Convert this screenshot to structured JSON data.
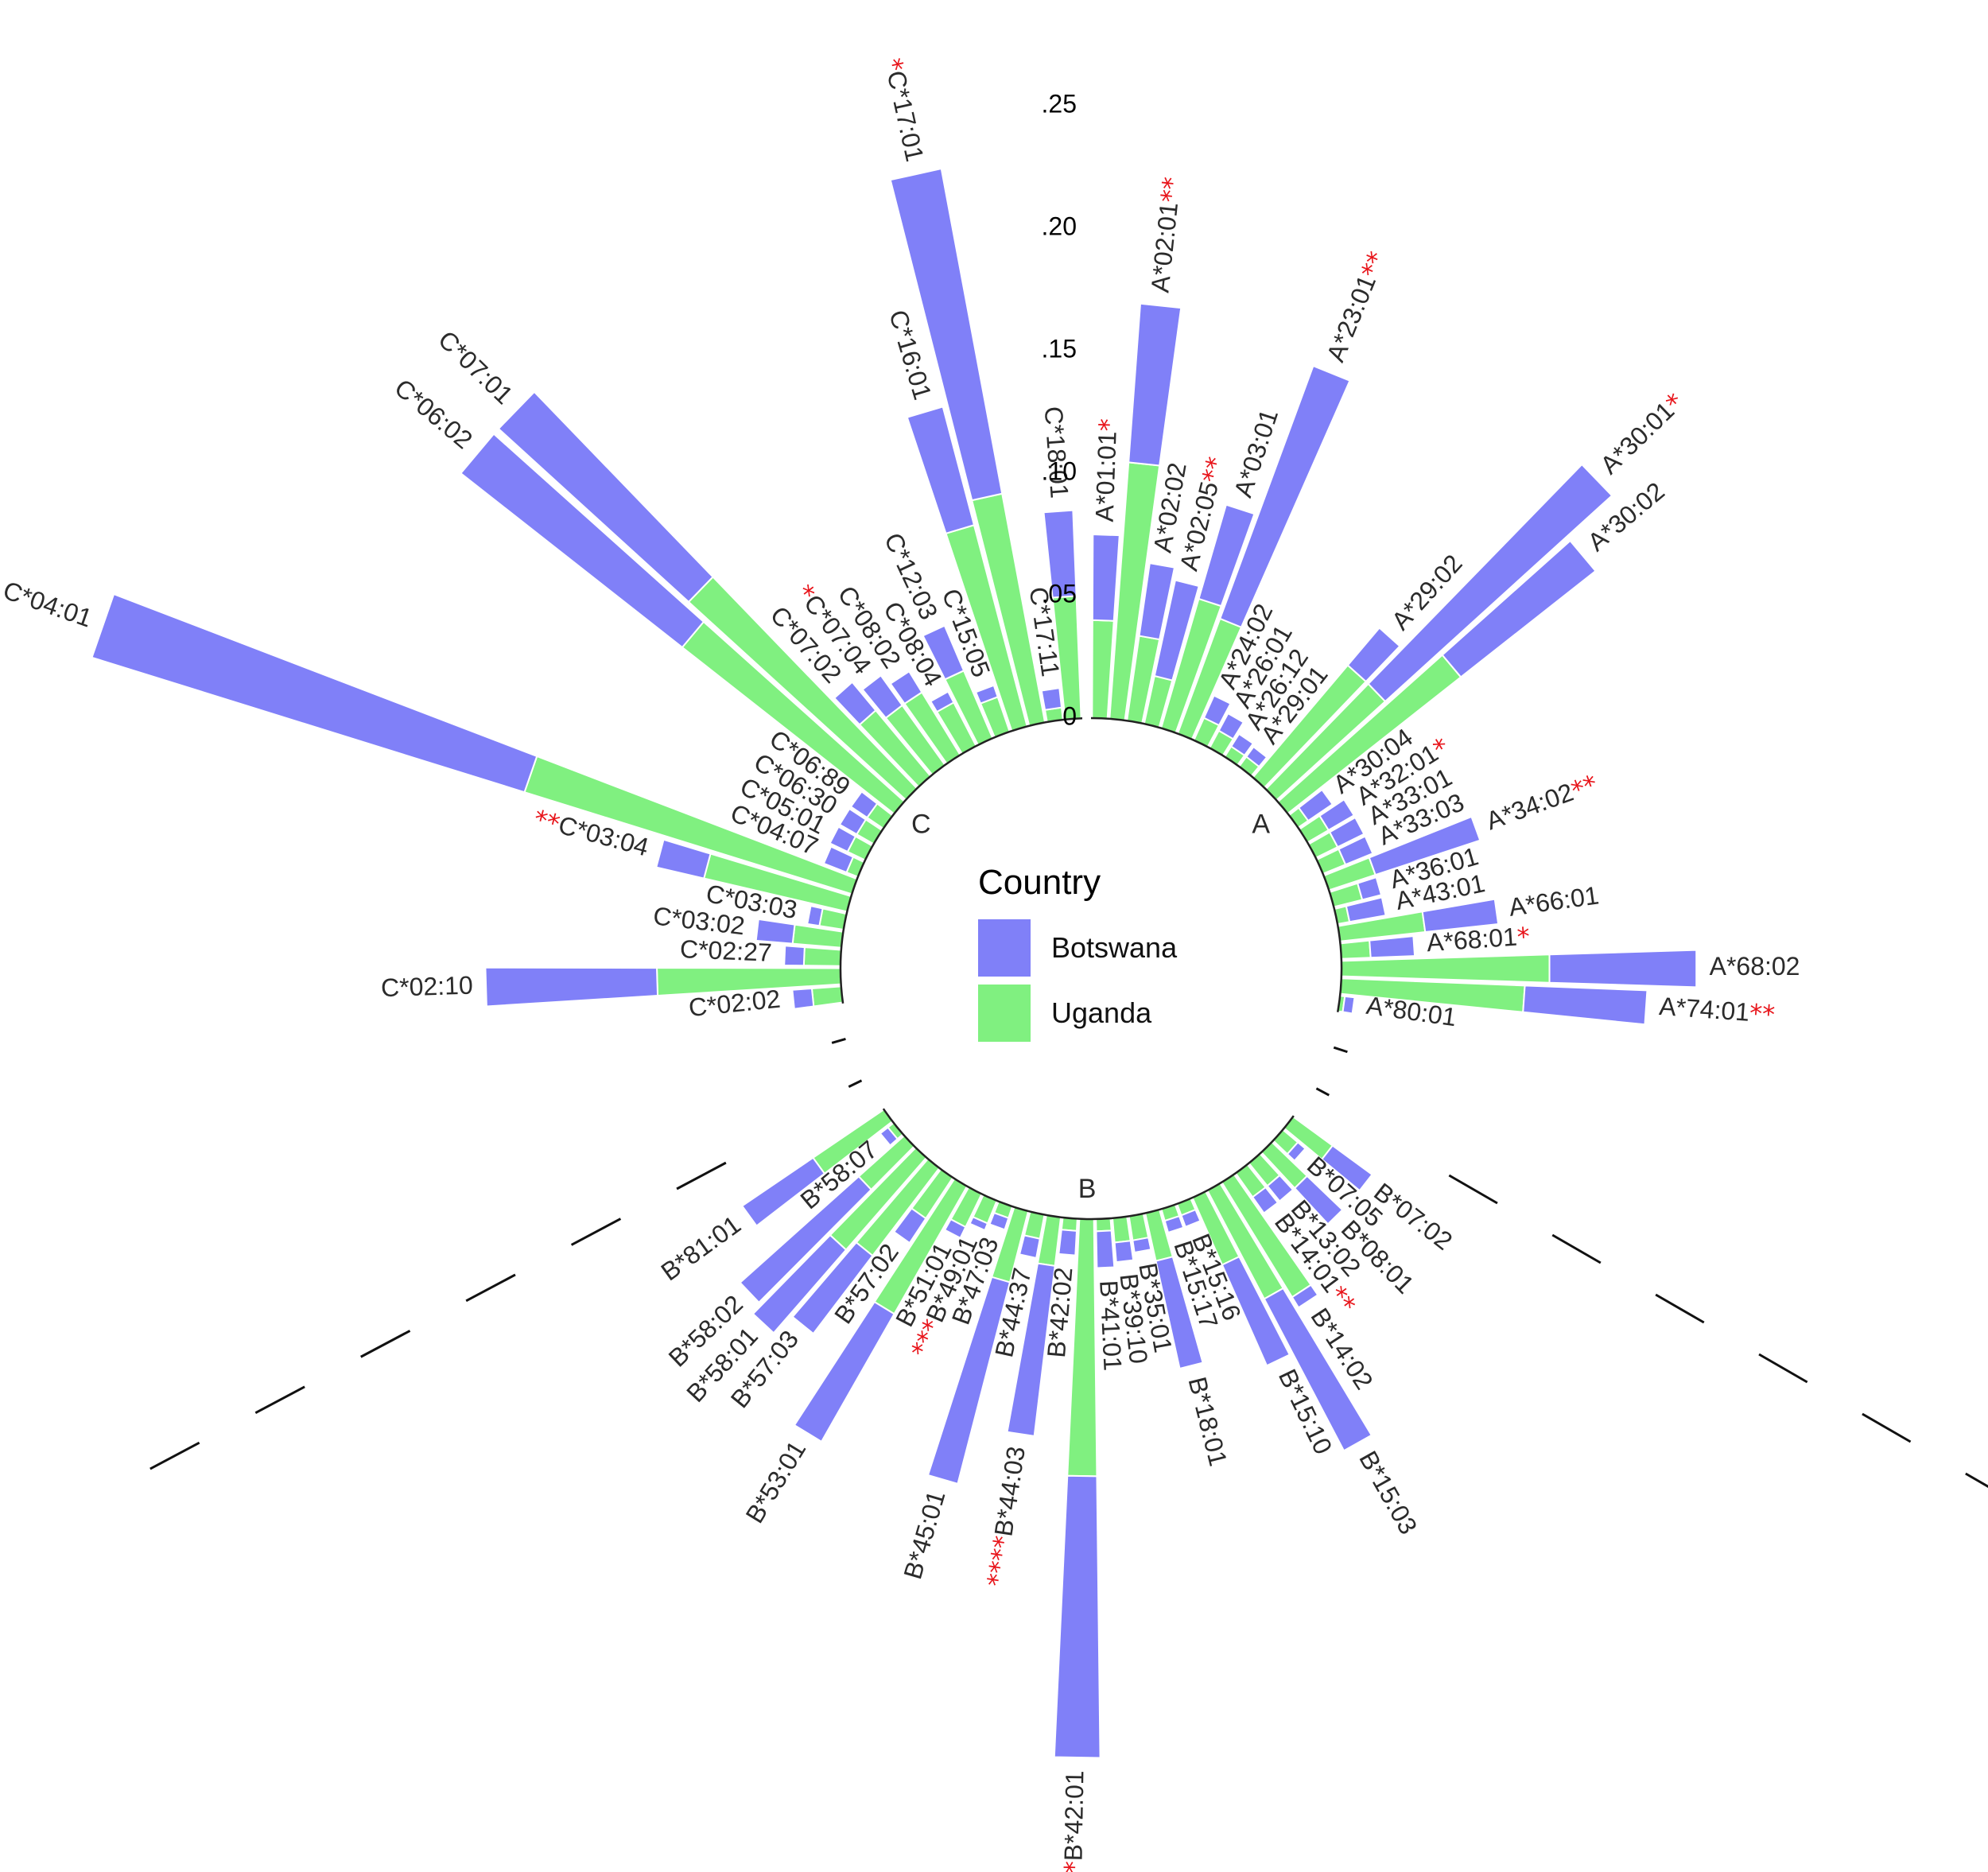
{
  "colors": {
    "botswana": "#8080f8",
    "uganda": "#80f080",
    "significance": "#e8141a"
  },
  "legend": {
    "title": "Country",
    "items": [
      {
        "key": "botswana",
        "label": "Botswana",
        "color": "#8080f8"
      },
      {
        "key": "uganda",
        "label": "Uganda",
        "color": "#80f080"
      }
    ]
  },
  "chart_data": {
    "type": "circular-stacked-bar",
    "radial_ticks": [
      "0",
      ".05",
      ".10",
      ".15",
      ".20",
      ".25",
      ".30"
    ],
    "radial_tick_values": [
      0,
      0.05,
      0.1,
      0.15,
      0.2,
      0.25,
      0.3
    ],
    "rlim": [
      0,
      0.3
    ],
    "groups": [
      {
        "name": "A",
        "alleles": [
          {
            "label": "A*01:01",
            "stars": "*",
            "uganda": 0.04,
            "botswana": 0.035
          },
          {
            "label": "A*02:01",
            "stars": "**",
            "uganda": 0.105,
            "botswana": 0.065
          },
          {
            "label": "A*02:02",
            "stars": "",
            "uganda": 0.035,
            "botswana": 0.03
          },
          {
            "label": "A*02:05",
            "stars": "**",
            "uganda": 0.02,
            "botswana": 0.04
          },
          {
            "label": "A*03:01",
            "stars": "",
            "uganda": 0.055,
            "botswana": 0.04
          },
          {
            "label": "A*23:01",
            "stars": "**",
            "uganda": 0.05,
            "botswana": 0.11
          },
          {
            "label": "A*24:02",
            "stars": "",
            "uganda": 0.01,
            "botswana": 0.01
          },
          {
            "label": "A*26:01",
            "stars": "",
            "uganda": 0.008,
            "botswana": 0.008
          },
          {
            "label": "A*26:12",
            "stars": "",
            "uganda": 0.005,
            "botswana": 0.006
          },
          {
            "label": "A*29:01",
            "stars": "",
            "uganda": 0.005,
            "botswana": 0.005
          },
          {
            "label": "A*29:02",
            "stars": "",
            "uganda": 0.06,
            "botswana": 0.02
          },
          {
            "label": "A*30:01",
            "stars": "*",
            "uganda": 0.06,
            "botswana": 0.125
          },
          {
            "label": "A*30:02",
            "stars": "",
            "uganda": 0.09,
            "botswana": 0.07
          },
          {
            "label": "A*30:04",
            "stars": "",
            "uganda": 0.005,
            "botswana": 0.012
          },
          {
            "label": "A*32:01",
            "stars": "*",
            "uganda": 0.01,
            "botswana": 0.012
          },
          {
            "label": "A*33:01",
            "stars": "",
            "uganda": 0.01,
            "botswana": 0.012
          },
          {
            "label": "A*33:03",
            "stars": "",
            "uganda": 0.01,
            "botswana": 0.012
          },
          {
            "label": "A*34:02",
            "stars": "**",
            "uganda": 0.02,
            "botswana": 0.045
          },
          {
            "label": "A*36:01",
            "stars": "",
            "uganda": 0.012,
            "botswana": 0.008
          },
          {
            "label": "A*43:01",
            "stars": "",
            "uganda": 0.005,
            "botswana": 0.015
          },
          {
            "label": "A*66:01",
            "stars": "",
            "uganda": 0.035,
            "botswana": 0.03
          },
          {
            "label": "A*68:01",
            "stars": "*",
            "uganda": 0.012,
            "botswana": 0.018
          },
          {
            "label": "A*68:02",
            "stars": "",
            "uganda": 0.085,
            "botswana": 0.06
          },
          {
            "label": "A*74:01",
            "stars": "**",
            "uganda": 0.075,
            "botswana": 0.05
          },
          {
            "label": "A*80:01",
            "stars": "",
            "uganda": 0.002,
            "botswana": 0.004
          }
        ]
      },
      {
        "name": "B",
        "alleles": [
          {
            "label": "B*07:02",
            "stars": "",
            "uganda": 0.02,
            "botswana": 0.02
          },
          {
            "label": "B*07:05",
            "stars": "",
            "uganda": 0.008,
            "botswana": 0.004
          },
          {
            "label": "B*08:01",
            "stars": "",
            "uganda": 0.02,
            "botswana": 0.02
          },
          {
            "label": "B*13:02",
            "stars": "",
            "uganda": 0.012,
            "botswana": 0.008
          },
          {
            "label": "B*14:01",
            "stars": "**",
            "uganda": 0.012,
            "botswana": 0.008
          },
          {
            "label": "B*14:02",
            "stars": "",
            "uganda": 0.055,
            "botswana": 0.005
          },
          {
            "label": "B*15:03",
            "stars": "",
            "uganda": 0.05,
            "botswana": 0.07
          },
          {
            "label": "B*15:10",
            "stars": "",
            "uganda": 0.03,
            "botswana": 0.045
          },
          {
            "label": "B*15:16",
            "stars": "",
            "uganda": 0.005,
            "botswana": 0.005
          },
          {
            "label": "B*15:17",
            "stars": "",
            "uganda": 0.005,
            "botswana": 0.005
          },
          {
            "label": "B*18:01",
            "stars": "",
            "uganda": 0.02,
            "botswana": 0.045
          },
          {
            "label": "B*35:01",
            "stars": "",
            "uganda": 0.01,
            "botswana": 0.005
          },
          {
            "label": "B*39:10",
            "stars": "",
            "uganda": 0.01,
            "botswana": 0.008
          },
          {
            "label": "B*41:01",
            "stars": "",
            "uganda": 0.005,
            "botswana": 0.015
          },
          {
            "label": "B*42:01",
            "stars": "**",
            "uganda": 0.105,
            "botswana": 0.115
          },
          {
            "label": "B*42:02",
            "stars": "",
            "uganda": 0.005,
            "botswana": 0.01
          },
          {
            "label": "B*44:03",
            "stars": "****",
            "uganda": 0.02,
            "botswana": 0.07
          },
          {
            "label": "B*44:37",
            "stars": "",
            "uganda": 0.01,
            "botswana": 0.008
          },
          {
            "label": "B*45:01",
            "stars": "",
            "uganda": 0.03,
            "botswana": 0.085
          },
          {
            "label": "B*47:03",
            "stars": "",
            "uganda": 0.005,
            "botswana": 0.005
          },
          {
            "label": "B*49:01",
            "stars": "***",
            "uganda": 0.01,
            "botswana": 0.003
          },
          {
            "label": "B*51:01",
            "stars": "",
            "uganda": 0.015,
            "botswana": 0.005
          },
          {
            "label": "B*53:01",
            "stars": "",
            "uganda": 0.06,
            "botswana": 0.06
          },
          {
            "label": "B*57:02",
            "stars": "",
            "uganda": 0.02,
            "botswana": 0.012
          },
          {
            "label": "B*57:03",
            "stars": "",
            "uganda": 0.045,
            "botswana": 0.04
          },
          {
            "label": "B*58:01",
            "stars": "",
            "uganda": 0.05,
            "botswana": 0.045
          },
          {
            "label": "B*58:02",
            "stars": "",
            "uganda": 0.025,
            "botswana": 0.065
          },
          {
            "label": "B*58:07",
            "stars": "",
            "uganda": 0.003,
            "botswana": 0.004
          },
          {
            "label": "B*81:01",
            "stars": "",
            "uganda": 0.035,
            "botswana": 0.035
          }
        ]
      },
      {
        "name": "C",
        "alleles": [
          {
            "label": "C*02:02",
            "stars": "",
            "uganda": 0.012,
            "botswana": 0.008
          },
          {
            "label": "C*02:10",
            "stars": "",
            "uganda": 0.075,
            "botswana": 0.07
          },
          {
            "label": "C*02:27",
            "stars": "",
            "uganda": 0.015,
            "botswana": 0.008
          },
          {
            "label": "C*03:02",
            "stars": "",
            "uganda": 0.02,
            "botswana": 0.015
          },
          {
            "label": "C*03:03",
            "stars": "",
            "uganda": 0.01,
            "botswana": 0.005
          },
          {
            "label": "C*03:04",
            "stars": "**",
            "uganda": 0.06,
            "botswana": 0.02
          },
          {
            "label": "C*04:01",
            "stars": "",
            "uganda": 0.14,
            "botswana": 0.185
          },
          {
            "label": "C*04:07",
            "stars": "",
            "uganda": 0.005,
            "botswana": 0.01
          },
          {
            "label": "C*05:01",
            "stars": "",
            "uganda": 0.008,
            "botswana": 0.008
          },
          {
            "label": "C*06:30",
            "stars": "",
            "uganda": 0.008,
            "botswana": 0.008
          },
          {
            "label": "C*06:89",
            "stars": "",
            "uganda": 0.008,
            "botswana": 0.008
          },
          {
            "label": "C*06:02",
            "stars": "",
            "uganda": 0.11,
            "botswana": 0.115
          },
          {
            "label": "C*07:01",
            "stars": "",
            "uganda": 0.12,
            "botswana": 0.105
          },
          {
            "label": "C*07:02",
            "stars": "",
            "uganda": 0.035,
            "botswana": 0.015
          },
          {
            "label": "C*07:04",
            "stars": "*",
            "uganda": 0.03,
            "botswana": 0.015
          },
          {
            "label": "C*08:02",
            "stars": "",
            "uganda": 0.03,
            "botswana": 0.01
          },
          {
            "label": "C*08:04",
            "stars": "",
            "uganda": 0.02,
            "botswana": 0.005
          },
          {
            "label": "C*12:03",
            "stars": "",
            "uganda": 0.03,
            "botswana": 0.02
          },
          {
            "label": "C*15:05",
            "stars": "",
            "uganda": 0.015,
            "botswana": 0.005
          },
          {
            "label": "C*16:01",
            "stars": "",
            "uganda": 0.085,
            "botswana": 0.05
          },
          {
            "label": "C*17:01",
            "stars": "*",
            "uganda": 0.095,
            "botswana": 0.135
          },
          {
            "label": "C*17:11",
            "stars": "",
            "uganda": 0.005,
            "botswana": 0.008
          },
          {
            "label": "C*18:01",
            "stars": "",
            "uganda": 0.05,
            "botswana": 0.035
          }
        ]
      }
    ]
  }
}
